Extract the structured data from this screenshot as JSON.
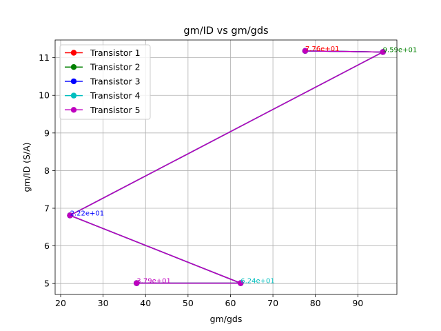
{
  "chart_data": {
    "type": "line",
    "title": "gm/ID vs gm/gds",
    "xlabel": "gm/gds",
    "ylabel": "gm/ID (S/A)",
    "xlim": [
      18.7,
      99.2
    ],
    "ylim": [
      4.71,
      11.47
    ],
    "xticks": [
      20,
      30,
      40,
      50,
      60,
      70,
      80,
      90
    ],
    "yticks": [
      5,
      6,
      7,
      8,
      9,
      10,
      11
    ],
    "grid": true,
    "legend_position": "top-left",
    "x": [
      77.6,
      95.9,
      22.2,
      62.4,
      37.9
    ],
    "y": [
      11.18,
      11.15,
      6.81,
      5.01,
      5.01
    ],
    "series": [
      {
        "name": "Transistor 1",
        "color": "#ff0000"
      },
      {
        "name": "Transistor 2",
        "color": "#008000"
      },
      {
        "name": "Transistor 3",
        "color": "#0000ff"
      },
      {
        "name": "Transistor 4",
        "color": "#00bfbf"
      },
      {
        "name": "Transistor 5",
        "color": "#bf00bf"
      }
    ],
    "annotations": [
      {
        "text": "7.76e+01",
        "x": 77.6,
        "y": 11.18,
        "color": "#ff0000"
      },
      {
        "text": "9.59e+01",
        "x": 95.9,
        "y": 11.15,
        "color": "#008000"
      },
      {
        "text": "2.22e+01",
        "x": 22.2,
        "y": 6.81,
        "color": "#0000ff"
      },
      {
        "text": "6.24e+01",
        "x": 62.4,
        "y": 5.01,
        "color": "#00bfbf"
      },
      {
        "text": "3.79e+01",
        "x": 37.9,
        "y": 5.01,
        "color": "#bf00bf"
      }
    ]
  }
}
